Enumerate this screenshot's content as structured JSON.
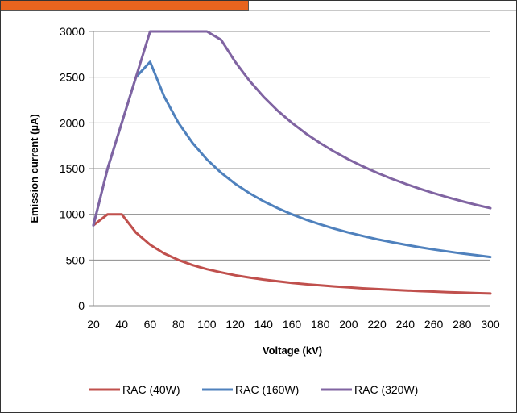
{
  "chart_data": {
    "type": "line",
    "title": "",
    "xlabel": "Voltage (kV)",
    "ylabel": "Emission current (µA)",
    "xlim": [
      20,
      300
    ],
    "ylim": [
      0,
      3000
    ],
    "xticks": [
      20,
      40,
      60,
      80,
      100,
      120,
      140,
      160,
      180,
      200,
      220,
      240,
      260,
      280,
      300
    ],
    "yticks": [
      0,
      500,
      1000,
      1500,
      2000,
      2500,
      3000
    ],
    "grid": "horizontal",
    "legend_position": "bottom",
    "colors": {
      "tab": "#e8641e",
      "grid": "#8c8c8c",
      "axis": "#8c8c8c"
    },
    "series": [
      {
        "name": "RAC (40W)",
        "color": "#c0504d",
        "x": [
          20,
          30,
          40,
          50,
          60,
          70,
          80,
          90,
          100,
          110,
          120,
          130,
          140,
          150,
          160,
          170,
          180,
          190,
          200,
          210,
          220,
          230,
          240,
          250,
          260,
          270,
          280,
          290,
          300
        ],
        "y": [
          880,
          1000,
          1000,
          800,
          667,
          571,
          500,
          444,
          400,
          364,
          333,
          308,
          286,
          267,
          250,
          235,
          222,
          211,
          200,
          190,
          182,
          174,
          167,
          160,
          154,
          148,
          143,
          138,
          133
        ]
      },
      {
        "name": "RAC (160W)",
        "color": "#4f81bd",
        "x": [
          20,
          30,
          40,
          50,
          60,
          70,
          80,
          90,
          100,
          110,
          120,
          130,
          140,
          150,
          160,
          170,
          180,
          190,
          200,
          210,
          220,
          230,
          240,
          250,
          260,
          270,
          280,
          290,
          300
        ],
        "y": [
          880,
          1500,
          2000,
          2500,
          2667,
          2286,
          2000,
          1778,
          1600,
          1455,
          1333,
          1231,
          1143,
          1067,
          1000,
          941,
          889,
          842,
          800,
          762,
          727,
          696,
          667,
          640,
          615,
          593,
          571,
          552,
          533
        ]
      },
      {
        "name": "RAC (320W)",
        "color": "#8064a2",
        "x": [
          20,
          30,
          40,
          50,
          60,
          70,
          80,
          90,
          100,
          110,
          120,
          130,
          140,
          150,
          160,
          170,
          180,
          190,
          200,
          210,
          220,
          230,
          240,
          250,
          260,
          270,
          280,
          290,
          300
        ],
        "y": [
          880,
          1500,
          2000,
          2500,
          3000,
          3000,
          3000,
          3000,
          3000,
          2909,
          2667,
          2462,
          2286,
          2133,
          2000,
          1882,
          1778,
          1684,
          1600,
          1524,
          1455,
          1391,
          1333,
          1280,
          1231,
          1185,
          1143,
          1103,
          1067
        ]
      }
    ]
  }
}
